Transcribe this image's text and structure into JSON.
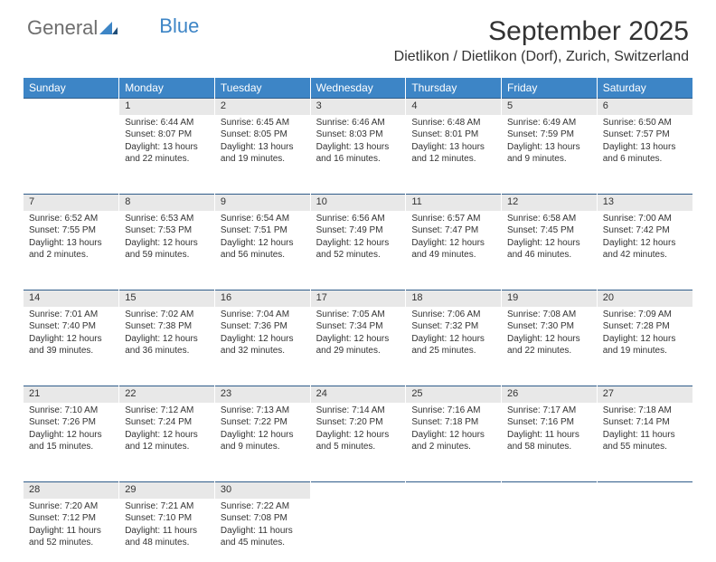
{
  "brand": {
    "part1": "General",
    "part2": "Blue"
  },
  "title": "September 2025",
  "location": "Dietlikon / Dietlikon (Dorf), Zurich, Switzerland",
  "colors": {
    "header_bg": "#3d85c6",
    "header_text": "#ffffff",
    "daynum_bg": "#e8e8e8",
    "border_top": "#2f5c8a",
    "body_text": "#333333",
    "logo_gray": "#6e6e6e",
    "logo_blue": "#3d85c6",
    "page_bg": "#ffffff"
  },
  "day_headers": [
    "Sunday",
    "Monday",
    "Tuesday",
    "Wednesday",
    "Thursday",
    "Friday",
    "Saturday"
  ],
  "weeks": [
    [
      null,
      {
        "n": "1",
        "sr": "Sunrise: 6:44 AM",
        "ss": "Sunset: 8:07 PM",
        "dl1": "Daylight: 13 hours",
        "dl2": "and 22 minutes."
      },
      {
        "n": "2",
        "sr": "Sunrise: 6:45 AM",
        "ss": "Sunset: 8:05 PM",
        "dl1": "Daylight: 13 hours",
        "dl2": "and 19 minutes."
      },
      {
        "n": "3",
        "sr": "Sunrise: 6:46 AM",
        "ss": "Sunset: 8:03 PM",
        "dl1": "Daylight: 13 hours",
        "dl2": "and 16 minutes."
      },
      {
        "n": "4",
        "sr": "Sunrise: 6:48 AM",
        "ss": "Sunset: 8:01 PM",
        "dl1": "Daylight: 13 hours",
        "dl2": "and 12 minutes."
      },
      {
        "n": "5",
        "sr": "Sunrise: 6:49 AM",
        "ss": "Sunset: 7:59 PM",
        "dl1": "Daylight: 13 hours",
        "dl2": "and 9 minutes."
      },
      {
        "n": "6",
        "sr": "Sunrise: 6:50 AM",
        "ss": "Sunset: 7:57 PM",
        "dl1": "Daylight: 13 hours",
        "dl2": "and 6 minutes."
      }
    ],
    [
      {
        "n": "7",
        "sr": "Sunrise: 6:52 AM",
        "ss": "Sunset: 7:55 PM",
        "dl1": "Daylight: 13 hours",
        "dl2": "and 2 minutes."
      },
      {
        "n": "8",
        "sr": "Sunrise: 6:53 AM",
        "ss": "Sunset: 7:53 PM",
        "dl1": "Daylight: 12 hours",
        "dl2": "and 59 minutes."
      },
      {
        "n": "9",
        "sr": "Sunrise: 6:54 AM",
        "ss": "Sunset: 7:51 PM",
        "dl1": "Daylight: 12 hours",
        "dl2": "and 56 minutes."
      },
      {
        "n": "10",
        "sr": "Sunrise: 6:56 AM",
        "ss": "Sunset: 7:49 PM",
        "dl1": "Daylight: 12 hours",
        "dl2": "and 52 minutes."
      },
      {
        "n": "11",
        "sr": "Sunrise: 6:57 AM",
        "ss": "Sunset: 7:47 PM",
        "dl1": "Daylight: 12 hours",
        "dl2": "and 49 minutes."
      },
      {
        "n": "12",
        "sr": "Sunrise: 6:58 AM",
        "ss": "Sunset: 7:45 PM",
        "dl1": "Daylight: 12 hours",
        "dl2": "and 46 minutes."
      },
      {
        "n": "13",
        "sr": "Sunrise: 7:00 AM",
        "ss": "Sunset: 7:42 PM",
        "dl1": "Daylight: 12 hours",
        "dl2": "and 42 minutes."
      }
    ],
    [
      {
        "n": "14",
        "sr": "Sunrise: 7:01 AM",
        "ss": "Sunset: 7:40 PM",
        "dl1": "Daylight: 12 hours",
        "dl2": "and 39 minutes."
      },
      {
        "n": "15",
        "sr": "Sunrise: 7:02 AM",
        "ss": "Sunset: 7:38 PM",
        "dl1": "Daylight: 12 hours",
        "dl2": "and 36 minutes."
      },
      {
        "n": "16",
        "sr": "Sunrise: 7:04 AM",
        "ss": "Sunset: 7:36 PM",
        "dl1": "Daylight: 12 hours",
        "dl2": "and 32 minutes."
      },
      {
        "n": "17",
        "sr": "Sunrise: 7:05 AM",
        "ss": "Sunset: 7:34 PM",
        "dl1": "Daylight: 12 hours",
        "dl2": "and 29 minutes."
      },
      {
        "n": "18",
        "sr": "Sunrise: 7:06 AM",
        "ss": "Sunset: 7:32 PM",
        "dl1": "Daylight: 12 hours",
        "dl2": "and 25 minutes."
      },
      {
        "n": "19",
        "sr": "Sunrise: 7:08 AM",
        "ss": "Sunset: 7:30 PM",
        "dl1": "Daylight: 12 hours",
        "dl2": "and 22 minutes."
      },
      {
        "n": "20",
        "sr": "Sunrise: 7:09 AM",
        "ss": "Sunset: 7:28 PM",
        "dl1": "Daylight: 12 hours",
        "dl2": "and 19 minutes."
      }
    ],
    [
      {
        "n": "21",
        "sr": "Sunrise: 7:10 AM",
        "ss": "Sunset: 7:26 PM",
        "dl1": "Daylight: 12 hours",
        "dl2": "and 15 minutes."
      },
      {
        "n": "22",
        "sr": "Sunrise: 7:12 AM",
        "ss": "Sunset: 7:24 PM",
        "dl1": "Daylight: 12 hours",
        "dl2": "and 12 minutes."
      },
      {
        "n": "23",
        "sr": "Sunrise: 7:13 AM",
        "ss": "Sunset: 7:22 PM",
        "dl1": "Daylight: 12 hours",
        "dl2": "and 9 minutes."
      },
      {
        "n": "24",
        "sr": "Sunrise: 7:14 AM",
        "ss": "Sunset: 7:20 PM",
        "dl1": "Daylight: 12 hours",
        "dl2": "and 5 minutes."
      },
      {
        "n": "25",
        "sr": "Sunrise: 7:16 AM",
        "ss": "Sunset: 7:18 PM",
        "dl1": "Daylight: 12 hours",
        "dl2": "and 2 minutes."
      },
      {
        "n": "26",
        "sr": "Sunrise: 7:17 AM",
        "ss": "Sunset: 7:16 PM",
        "dl1": "Daylight: 11 hours",
        "dl2": "and 58 minutes."
      },
      {
        "n": "27",
        "sr": "Sunrise: 7:18 AM",
        "ss": "Sunset: 7:14 PM",
        "dl1": "Daylight: 11 hours",
        "dl2": "and 55 minutes."
      }
    ],
    [
      {
        "n": "28",
        "sr": "Sunrise: 7:20 AM",
        "ss": "Sunset: 7:12 PM",
        "dl1": "Daylight: 11 hours",
        "dl2": "and 52 minutes."
      },
      {
        "n": "29",
        "sr": "Sunrise: 7:21 AM",
        "ss": "Sunset: 7:10 PM",
        "dl1": "Daylight: 11 hours",
        "dl2": "and 48 minutes."
      },
      {
        "n": "30",
        "sr": "Sunrise: 7:22 AM",
        "ss": "Sunset: 7:08 PM",
        "dl1": "Daylight: 11 hours",
        "dl2": "and 45 minutes."
      },
      null,
      null,
      null,
      null
    ]
  ]
}
